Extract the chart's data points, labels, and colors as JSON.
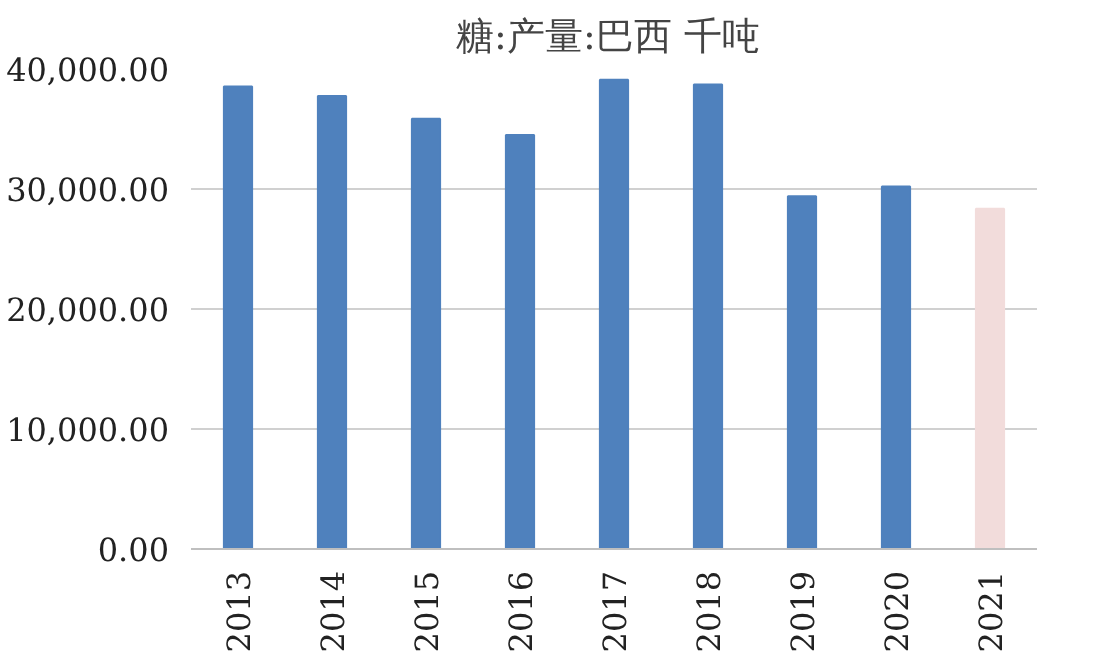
{
  "chart_data": {
    "type": "bar",
    "title": "糖:产量:巴西  千吨",
    "categories": [
      "2013",
      "2014",
      "2015",
      "2016",
      "2017",
      "2018",
      "2019",
      "2020",
      "2021"
    ],
    "values": [
      38550,
      37740,
      35850,
      34500,
      39100,
      38700,
      29400,
      30200,
      28350
    ],
    "colors": [
      "#4f81bd",
      "#4f81bd",
      "#4f81bd",
      "#4f81bd",
      "#4f81bd",
      "#4f81bd",
      "#4f81bd",
      "#4f81bd",
      "#f2dcdb"
    ],
    "ylim": [
      0,
      40000
    ],
    "yticks": [
      {
        "value": 0,
        "label": "0.00"
      },
      {
        "value": 10000,
        "label": "10,000.00"
      },
      {
        "value": 20000,
        "label": "20,000.00"
      },
      {
        "value": 30000,
        "label": "30,000.00"
      },
      {
        "value": 40000,
        "label": "40,000.00"
      }
    ],
    "grid": "y"
  }
}
